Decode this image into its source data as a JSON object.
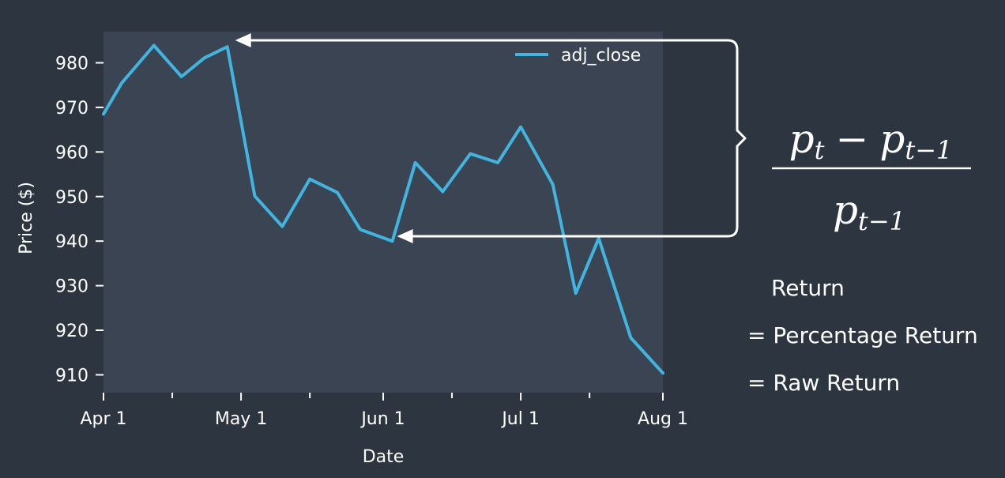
{
  "chart_data": {
    "type": "line",
    "xlabel": "Date",
    "ylabel": "Price ($)",
    "ylim": [
      906,
      987
    ],
    "xlim": [
      "2017-04-01",
      "2017-08-01"
    ],
    "x_ticks": [
      {
        "date": "2017-04-01",
        "label": "Apr 1"
      },
      {
        "date": "2017-05-01",
        "label": "May 1"
      },
      {
        "date": "2017-06-01",
        "label": "Jun 1"
      },
      {
        "date": "2017-07-01",
        "label": "Jul 1"
      },
      {
        "date": "2017-08-01",
        "label": "Aug 1"
      }
    ],
    "x_minor_ticks": [
      "2017-04-16",
      "2017-05-16",
      "2017-06-16",
      "2017-07-16"
    ],
    "y_ticks": [
      910,
      920,
      930,
      940,
      950,
      960,
      970,
      980
    ],
    "grid": false,
    "legend": {
      "position": "top-right"
    },
    "series": [
      {
        "name": "adj_close",
        "color": "#42b4e0",
        "points": [
          {
            "x": "2017-04-01",
            "y": 968.5
          },
          {
            "x": "2017-04-05",
            "y": 975.5
          },
          {
            "x": "2017-04-12",
            "y": 983.9
          },
          {
            "x": "2017-04-18",
            "y": 976.9
          },
          {
            "x": "2017-04-23",
            "y": 981.1
          },
          {
            "x": "2017-04-28",
            "y": 983.6
          },
          {
            "x": "2017-05-04",
            "y": 950.1
          },
          {
            "x": "2017-05-10",
            "y": 943.3
          },
          {
            "x": "2017-05-16",
            "y": 953.9
          },
          {
            "x": "2017-05-22",
            "y": 950.9
          },
          {
            "x": "2017-05-27",
            "y": 942.6
          },
          {
            "x": "2017-06-03",
            "y": 940.0
          },
          {
            "x": "2017-06-08",
            "y": 957.6
          },
          {
            "x": "2017-06-14",
            "y": 951.1
          },
          {
            "x": "2017-06-20",
            "y": 959.6
          },
          {
            "x": "2017-06-26",
            "y": 957.6
          },
          {
            "x": "2017-07-01",
            "y": 965.6
          },
          {
            "x": "2017-07-08",
            "y": 952.7
          },
          {
            "x": "2017-07-13",
            "y": 928.3
          },
          {
            "x": "2017-07-18",
            "y": 940.6
          },
          {
            "x": "2017-07-25",
            "y": 918.3
          },
          {
            "x": "2017-08-01",
            "y": 910.4
          }
        ]
      }
    ]
  },
  "formula": {
    "numerator_a": "p",
    "numerator_a_sub": "t",
    "minus": "−",
    "numerator_b": "p",
    "numerator_b_sub": "t−1",
    "denominator": "p",
    "denominator_sub": "t−1"
  },
  "annotation": {
    "arrow_color": "#ffffff",
    "from_date": "2017-04-28",
    "to_date": "2017-06-03"
  },
  "returns": {
    "line1": "Return",
    "line2": "= Percentage Return",
    "line3": "= Raw Return"
  },
  "colors": {
    "background": "#2d3540",
    "plot_background": "#3a4452"
  }
}
